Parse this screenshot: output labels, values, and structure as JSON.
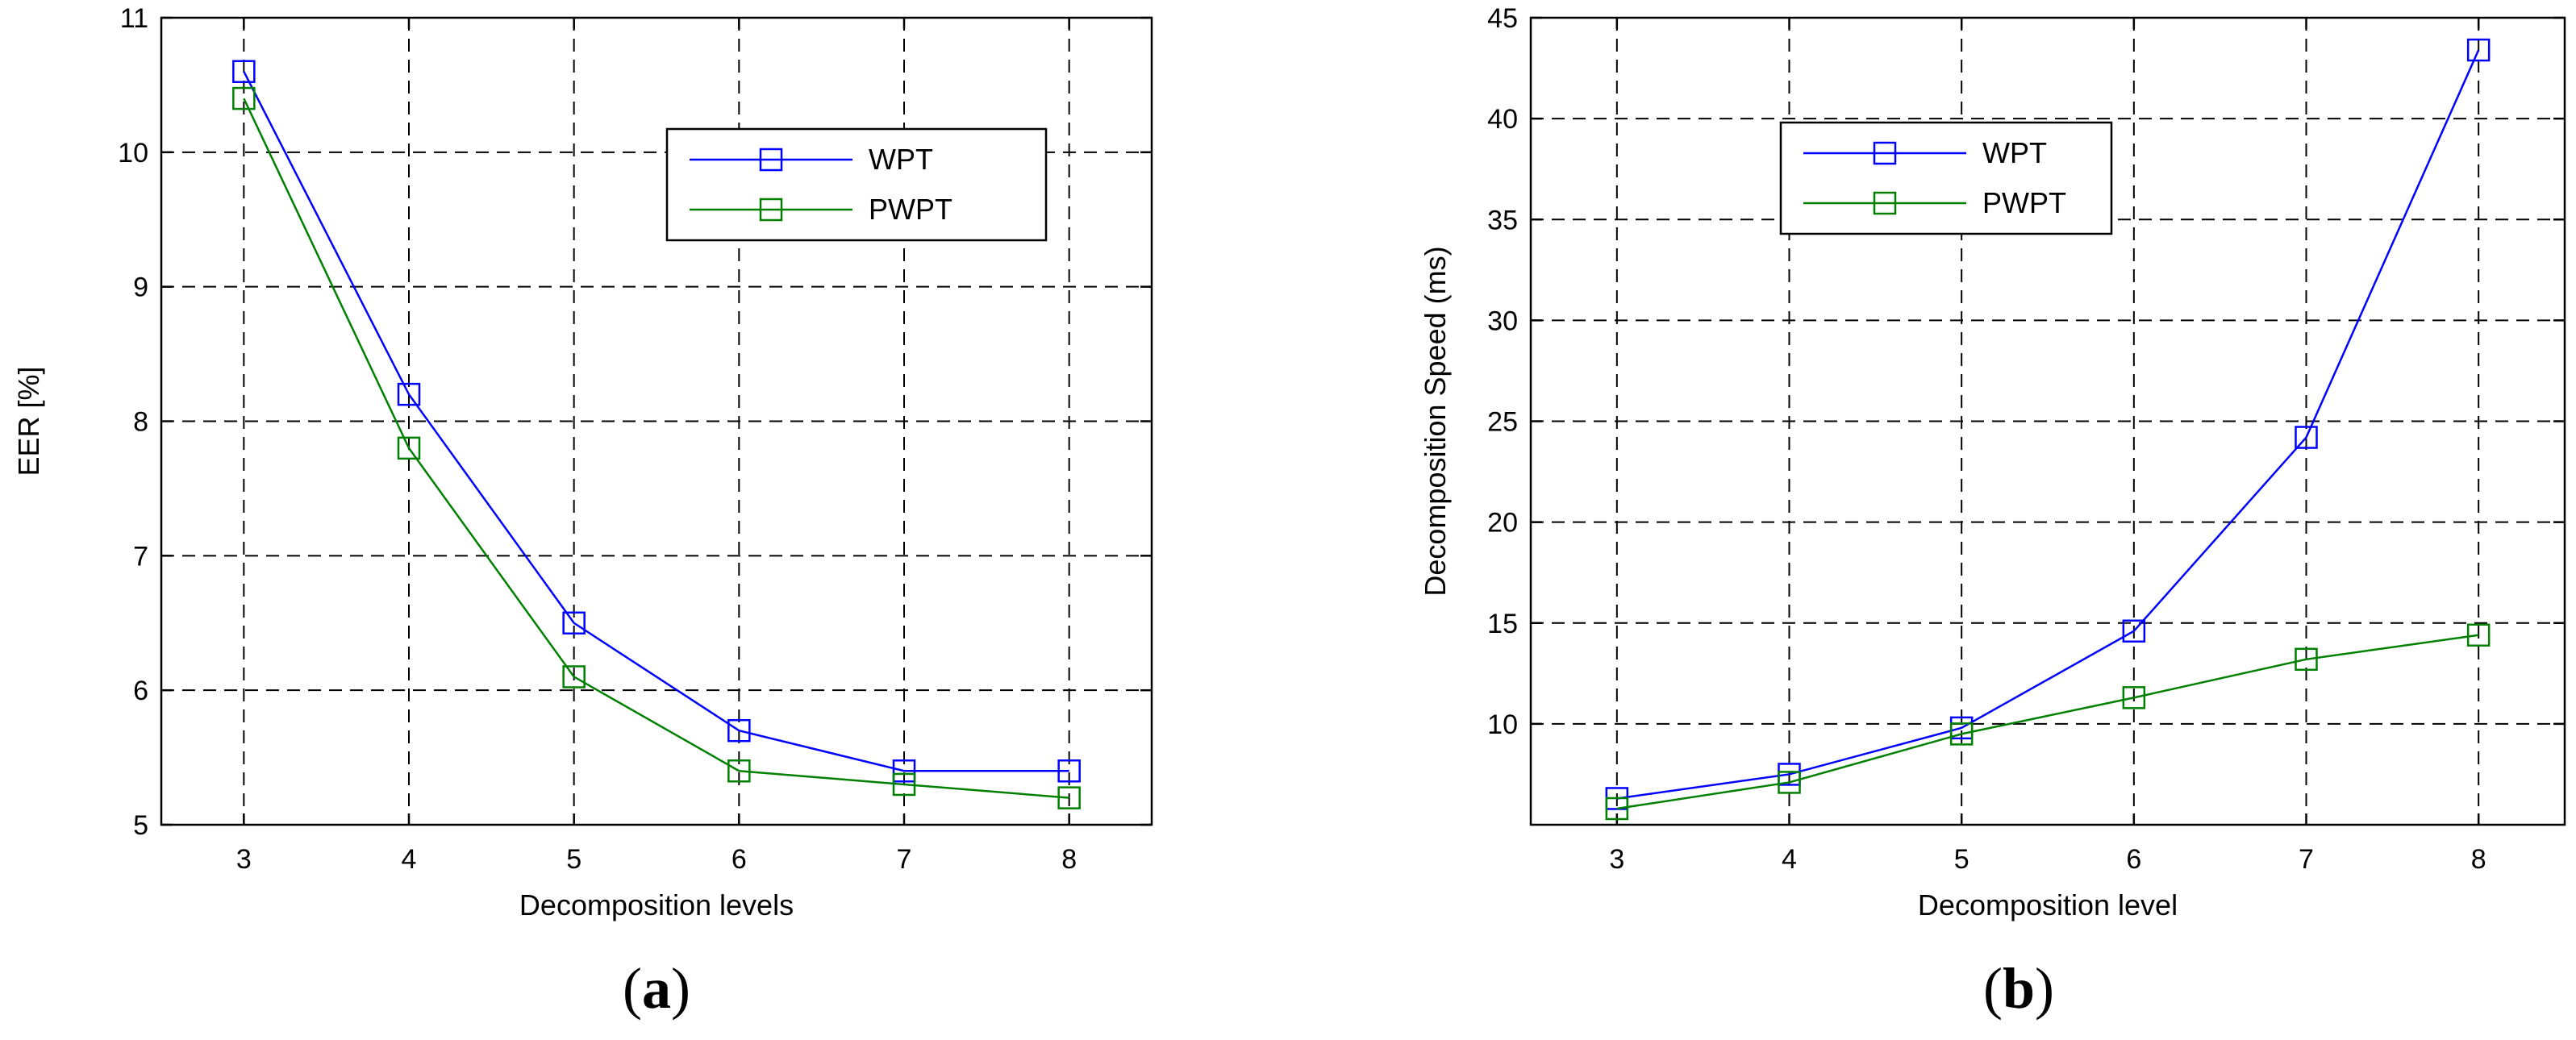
{
  "chart_data": [
    {
      "type": "line",
      "panel_label": "a",
      "title": "",
      "xlabel": "Decomposition levels",
      "ylabel": "EER [%]",
      "xlim": [
        2.5,
        8.5
      ],
      "ylim": [
        5,
        11
      ],
      "xticks": [
        3,
        4,
        5,
        6,
        7,
        8
      ],
      "yticks": [
        5,
        6,
        7,
        8,
        9,
        10,
        11
      ],
      "grid": true,
      "legend_position": "top-right",
      "x": [
        3,
        4,
        5,
        6,
        7,
        8
      ],
      "series": [
        {
          "name": "WPT",
          "color": "#0000ff",
          "marker": "square",
          "values": [
            10.6,
            8.2,
            6.5,
            5.7,
            5.4,
            5.4
          ]
        },
        {
          "name": "PWPT",
          "color": "#008000",
          "marker": "square",
          "values": [
            10.4,
            7.8,
            6.1,
            5.4,
            5.3,
            5.2
          ]
        }
      ]
    },
    {
      "type": "line",
      "panel_label": "b",
      "title": "",
      "xlabel": "Decomposition level",
      "ylabel": "Decomposition Speed (ms)",
      "xlim": [
        2.5,
        8.5
      ],
      "ylim": [
        5,
        45
      ],
      "xticks": [
        3,
        4,
        5,
        6,
        7,
        8
      ],
      "yticks": [
        10,
        15,
        20,
        25,
        30,
        35,
        40,
        45
      ],
      "grid": true,
      "legend_position": "top-left",
      "x": [
        3,
        4,
        5,
        6,
        7,
        8
      ],
      "series": [
        {
          "name": "WPT",
          "color": "#0000ff",
          "marker": "square",
          "values": [
            6.3,
            7.5,
            9.8,
            14.6,
            24.2,
            43.4
          ]
        },
        {
          "name": "PWPT",
          "color": "#008000",
          "marker": "square",
          "values": [
            5.8,
            7.1,
            9.5,
            11.3,
            13.2,
            14.4
          ]
        }
      ]
    }
  ]
}
